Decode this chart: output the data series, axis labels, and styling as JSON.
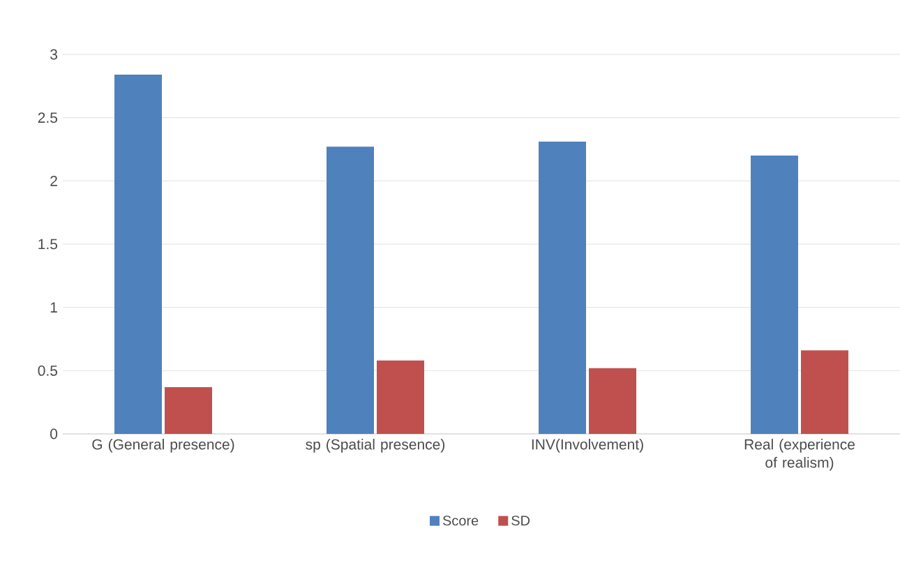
{
  "chart_data": {
    "type": "bar",
    "categories": [
      "G (General presence)",
      "sp (Spatial presence)",
      "INV(Involvement)",
      "Real (experience of realism)"
    ],
    "series": [
      {
        "name": "Score",
        "color": "#4f81bd",
        "values": [
          2.84,
          2.27,
          2.31,
          2.2
        ]
      },
      {
        "name": "SD",
        "color": "#c0504d",
        "values": [
          0.37,
          0.58,
          0.52,
          0.66
        ]
      }
    ],
    "ylim": [
      0,
      3
    ],
    "yticks": [
      0,
      0.5,
      1,
      1.5,
      2,
      2.5,
      3
    ],
    "grid": "y",
    "legend": "bottom"
  }
}
